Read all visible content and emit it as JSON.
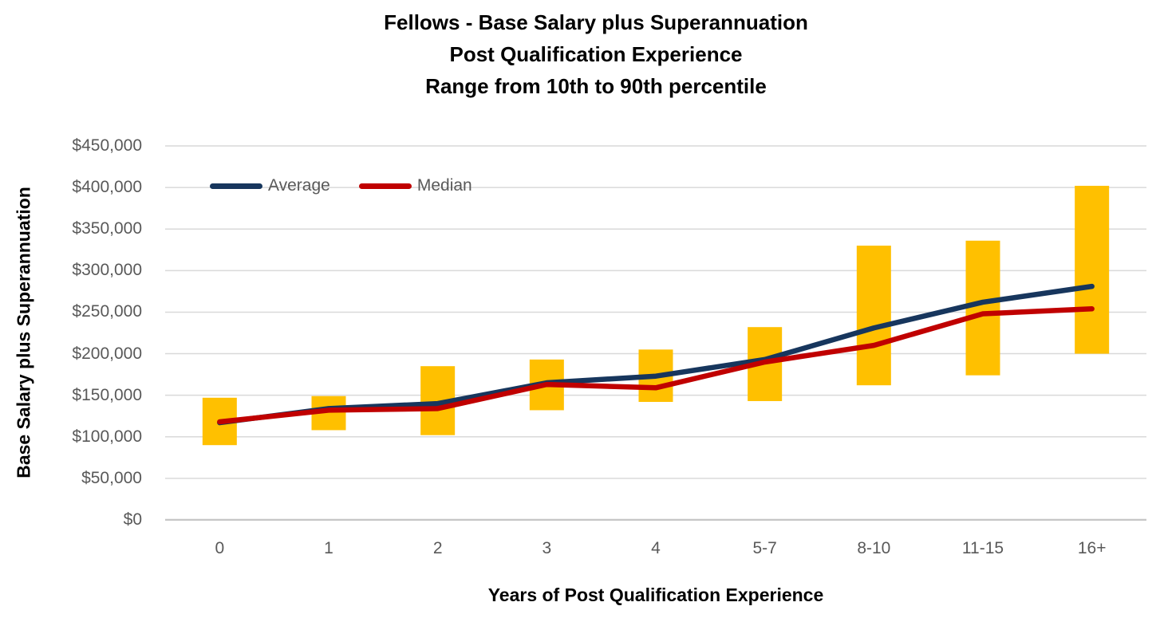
{
  "chart_data": {
    "type": "bar",
    "subtype": "floating-range-bars-with-overlaid-lines",
    "title": "Fellows - Base Salary plus Superannuation Post Qualification Experience Range from 10th to 90th percentile",
    "title_lines": [
      "Fellows - Base Salary plus Superannuation",
      "Post Qualification Experience",
      "Range from 10th to 90th percentile"
    ],
    "xlabel": "Years of Post Qualification Experience",
    "ylabel": "Base Salary plus Superannuation",
    "categories": [
      "0",
      "1",
      "2",
      "3",
      "4",
      "5-7",
      "8-10",
      "11-15",
      "16+"
    ],
    "series": [
      {
        "name": "Average",
        "type": "line",
        "color": "#17365D",
        "values": [
          117000,
          134000,
          140000,
          165000,
          173000,
          193000,
          231000,
          262000,
          281000
        ]
      },
      {
        "name": "Median",
        "type": "line",
        "color": "#C00000",
        "values": [
          118000,
          132000,
          134000,
          163000,
          159000,
          190000,
          210000,
          248000,
          254000
        ]
      },
      {
        "name": "10th to 90th percentile range",
        "type": "bar",
        "color": "#FFC000",
        "low": [
          90000,
          108000,
          102000,
          132000,
          142000,
          143000,
          162000,
          174000,
          200000
        ],
        "high": [
          147000,
          149000,
          185000,
          193000,
          205000,
          232000,
          330000,
          336000,
          402000
        ]
      }
    ],
    "ylim": [
      0,
      450000
    ],
    "ytick_step": 50000,
    "y_ticks": [
      {
        "value": 450000,
        "label": "$450,000"
      },
      {
        "value": 400000,
        "label": "$400,000"
      },
      {
        "value": 350000,
        "label": "$350,000"
      },
      {
        "value": 300000,
        "label": "$300,000"
      },
      {
        "value": 250000,
        "label": "$250,000"
      },
      {
        "value": 200000,
        "label": "$200,000"
      },
      {
        "value": 150000,
        "label": "$150,000"
      },
      {
        "value": 100000,
        "label": "$100,000"
      },
      {
        "value": 50000,
        "label": "$50,000"
      },
      {
        "value": 0,
        "label": "$0"
      }
    ],
    "grid": "horizontal",
    "legend_position": "inside-top-left",
    "legend_entries": [
      "Average",
      "Median"
    ]
  },
  "colors": {
    "background": "#FFFFFF",
    "bar_fill": "#FFC000",
    "average_line": "#17365D",
    "median_line": "#C00000",
    "gridline": "#D9D9D9",
    "axis_line": "#C6C6C6",
    "tick_text": "#595959",
    "title_text": "#000000"
  }
}
